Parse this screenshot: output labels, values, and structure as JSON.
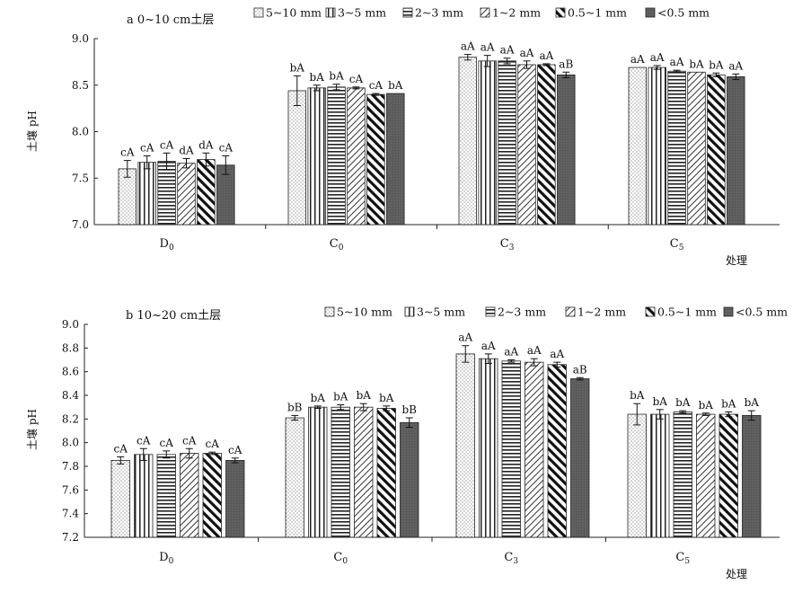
{
  "legend_items": [
    "5~10 mm",
    "3~5 mm",
    "2~3 mm",
    "1~2 mm",
    "0.5~1 mm",
    "<0.5 mm"
  ],
  "colors": {
    "bar_stroke": "#222222",
    "solid_fill": "#555555",
    "axis": "#222222",
    "text": "#111111"
  },
  "chart_data": [
    {
      "type": "bar",
      "title": "a 0~10 cm土层",
      "xlabel": "处理",
      "ylabel": "土壤 pH",
      "ylim": [
        7.0,
        9.0
      ],
      "yticks": [
        "7.0",
        "7.5",
        "8.0",
        "8.5",
        "9.0"
      ],
      "grid": false,
      "legend_position": "top",
      "categories": [
        "D0",
        "C0",
        "C3",
        "C5"
      ],
      "series": [
        {
          "name": "5~10 mm",
          "values": [
            7.6,
            8.44,
            8.8,
            8.69
          ],
          "errors": [
            0.09,
            0.16,
            0.03,
            0.0
          ],
          "letters": [
            "cA",
            "bA",
            "aA",
            "aA"
          ]
        },
        {
          "name": "3~5 mm",
          "values": [
            7.67,
            8.47,
            8.76,
            8.69
          ],
          "errors": [
            0.07,
            0.03,
            0.06,
            0.02
          ],
          "letters": [
            "cA",
            "bA",
            "aA",
            "aA"
          ]
        },
        {
          "name": "2~3 mm",
          "values": [
            7.68,
            8.48,
            8.76,
            8.65
          ],
          "errors": [
            0.09,
            0.03,
            0.03,
            0.01
          ],
          "letters": [
            "cA",
            "bA",
            "aA",
            "aA"
          ]
        },
        {
          "name": "1~2 mm",
          "values": [
            7.66,
            8.47,
            8.72,
            8.64
          ],
          "errors": [
            0.05,
            0.01,
            0.04,
            0.0
          ],
          "letters": [
            "dA",
            "cA",
            "aA",
            "bA"
          ]
        },
        {
          "name": "0.5~1 mm",
          "values": [
            7.7,
            8.4,
            8.72,
            8.61
          ],
          "errors": [
            0.07,
            0.01,
            0.01,
            0.02
          ],
          "letters": [
            "dA",
            "cA",
            "aA",
            "bA"
          ]
        },
        {
          "name": "<0.5 mm",
          "values": [
            7.64,
            8.41,
            8.61,
            8.59
          ],
          "errors": [
            0.1,
            0.0,
            0.03,
            0.03
          ],
          "letters": [
            "cA",
            "bA",
            "aB",
            "aA"
          ]
        }
      ]
    },
    {
      "type": "bar",
      "title": "b 10~20 cm土层",
      "xlabel": "处理",
      "ylabel": "土壤 pH",
      "ylim": [
        7.2,
        9.0
      ],
      "yticks": [
        "7.2",
        "7.4",
        "7.6",
        "7.8",
        "8.0",
        "8.2",
        "8.4",
        "8.6",
        "8.8",
        "9.0"
      ],
      "grid": false,
      "legend_position": "top",
      "categories": [
        "D0",
        "C0",
        "C3",
        "C5"
      ],
      "series": [
        {
          "name": "5~10 mm",
          "values": [
            7.85,
            8.21,
            8.75,
            8.24
          ],
          "errors": [
            0.03,
            0.02,
            0.07,
            0.09
          ],
          "letters": [
            "cA",
            "bB",
            "aA",
            "bA"
          ]
        },
        {
          "name": "3~5 mm",
          "values": [
            7.9,
            8.3,
            8.71,
            8.24
          ],
          "errors": [
            0.05,
            0.01,
            0.04,
            0.04
          ],
          "letters": [
            "cA",
            "bA",
            "aA",
            "bA"
          ]
        },
        {
          "name": "2~3 mm",
          "values": [
            7.9,
            8.3,
            8.69,
            8.26
          ],
          "errors": [
            0.03,
            0.02,
            0.01,
            0.01
          ],
          "letters": [
            "cA",
            "bA",
            "aA",
            "bA"
          ]
        },
        {
          "name": "1~2 mm",
          "values": [
            7.91,
            8.3,
            8.68,
            8.24
          ],
          "errors": [
            0.04,
            0.03,
            0.03,
            0.01
          ],
          "letters": [
            "cA",
            "bA",
            "aA",
            "bA"
          ]
        },
        {
          "name": "0.5~1 mm",
          "values": [
            7.91,
            8.29,
            8.66,
            8.24
          ],
          "errors": [
            0.01,
            0.02,
            0.02,
            0.02
          ],
          "letters": [
            "cA",
            "bA",
            "aA",
            "bA"
          ]
        },
        {
          "name": "<0.5 mm",
          "values": [
            7.85,
            8.17,
            8.54,
            8.23
          ],
          "errors": [
            0.02,
            0.04,
            0.01,
            0.04
          ],
          "letters": [
            "cA",
            "bB",
            "aB",
            "bA"
          ]
        }
      ]
    }
  ]
}
